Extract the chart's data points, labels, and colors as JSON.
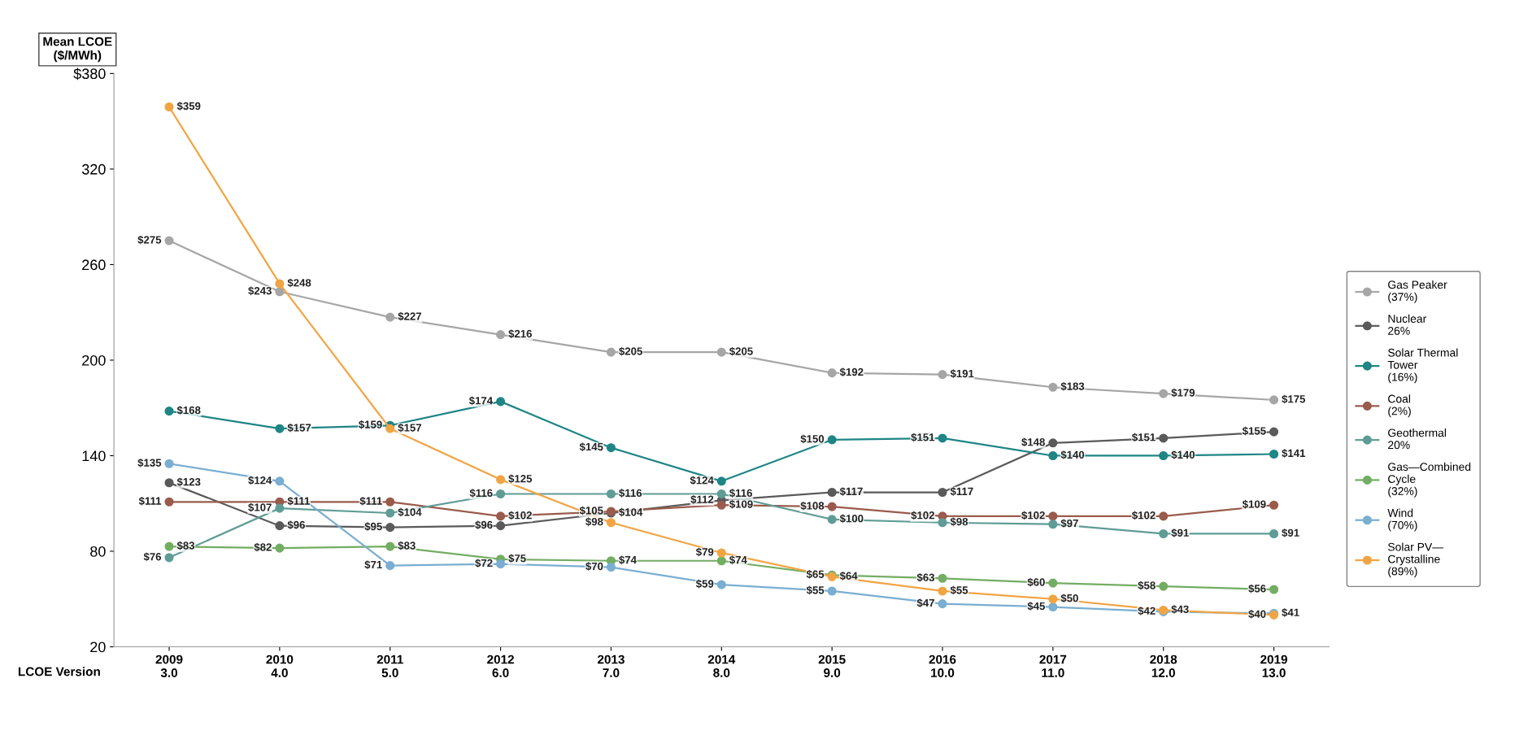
{
  "chart_data": {
    "type": "line",
    "ylabel": "Mean LCOE\n($/MWh)",
    "xlabel": "LCOE Version",
    "categories": [
      "2009\n3.0",
      "2010\n4.0",
      "2011\n5.0",
      "2012\n6.0",
      "2013\n7.0",
      "2014\n8.0",
      "2015\n9.0",
      "2016\n10.0",
      "2017\n11.0",
      "2018\n12.0",
      "2019\n13.0"
    ],
    "ylim": [
      20,
      380
    ],
    "yticks": [
      20,
      80,
      140,
      200,
      260,
      320,
      {
        "value": 380,
        "label": "$380"
      }
    ],
    "grid": false,
    "legend": "right",
    "marker": "circle",
    "line_style": "solid",
    "series": [
      {
        "name": "Gas Peaker\n(37%)",
        "color": "#a6a6a6",
        "values": [
          275,
          243,
          227,
          216,
          205,
          205,
          192,
          191,
          183,
          179,
          175
        ],
        "value_labels": [
          "$275",
          "$243",
          "$227",
          "$216",
          "$205",
          "$205",
          "$192",
          "$191",
          "$183",
          "$179",
          "$175"
        ]
      },
      {
        "name": "Nuclear\n26%",
        "color": "#5a5a5a",
        "values": [
          123,
          96,
          95,
          96,
          104,
          112,
          117,
          117,
          148,
          151,
          155
        ],
        "value_labels": [
          "$123",
          "$96",
          "$95",
          "$96",
          "$104",
          "$112",
          "$117",
          "$117",
          "$148",
          "$151",
          "$155"
        ]
      },
      {
        "name": "Solar Thermal\nTower\n(16%)",
        "color": "#1f8585",
        "values": [
          168,
          157,
          159,
          174,
          145,
          124,
          150,
          151,
          140,
          140,
          141
        ],
        "value_labels": [
          "$168",
          "$157",
          "$159",
          "$174",
          "$145",
          "$124",
          "$150",
          "$151",
          "$140",
          "$140",
          "$141"
        ]
      },
      {
        "name": "Coal\n(2%)",
        "color": "#9a5b4c",
        "values": [
          111,
          111,
          111,
          102,
          105,
          109,
          108,
          102,
          102,
          102,
          109
        ],
        "value_labels": [
          "$111",
          "$111",
          "$111",
          "$102",
          "$105",
          "$109",
          "$108",
          "$102",
          "$102",
          "$102",
          "$109"
        ]
      },
      {
        "name": "Geothermal\n20%",
        "color": "#5f9c95",
        "values": [
          76,
          107,
          104,
          116,
          116,
          116,
          100,
          98,
          97,
          91,
          91
        ],
        "value_labels": [
          "$76",
          "$107",
          "$104",
          "$116",
          "$116",
          "$116",
          "$100",
          "$98",
          "$97",
          "$91",
          "$91"
        ]
      },
      {
        "name": "Gas—Combined\nCycle\n(32%)",
        "color": "#73ad63",
        "values": [
          83,
          82,
          83,
          75,
          74,
          74,
          65,
          63,
          60,
          58,
          56
        ],
        "value_labels": [
          "$83",
          "$82",
          "$83",
          "$75",
          "$74",
          "$74",
          "$65",
          "$63",
          "$60",
          "$58",
          "$56"
        ]
      },
      {
        "name": "Wind\n(70%)",
        "color": "#7aaed2",
        "values": [
          135,
          124,
          71,
          72,
          70,
          59,
          55,
          47,
          45,
          42,
          41
        ],
        "value_labels": [
          "$135",
          "$124",
          "$71",
          "$72",
          "$70",
          "$59",
          "$55",
          "$47",
          "$45",
          "$42",
          "$41"
        ]
      },
      {
        "name": "Solar PV—\nCrystalline\n(89%)",
        "color": "#f2a443",
        "values": [
          359,
          248,
          157,
          125,
          98,
          79,
          64,
          55,
          50,
          43,
          40
        ],
        "value_labels": [
          "$359",
          "$248",
          "$157",
          "$125",
          "$98",
          "$79",
          "$64",
          "$55",
          "$50",
          "$43",
          "$40"
        ]
      }
    ]
  }
}
